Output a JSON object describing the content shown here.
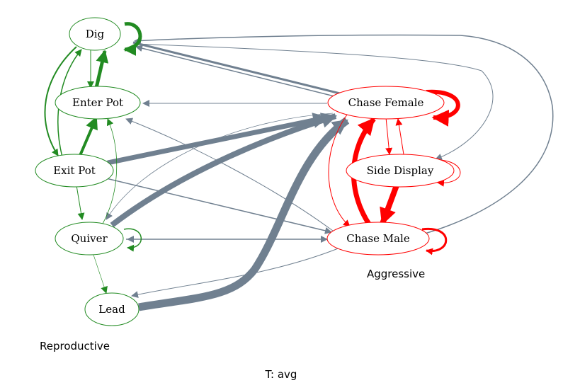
{
  "footer": "T: avg",
  "colors": {
    "reproductive": "#228b22",
    "aggressive": "#ff0000",
    "cross": "#708090"
  },
  "groups": [
    {
      "id": "reproductive",
      "label": "Reproductive"
    },
    {
      "id": "aggressive",
      "label": "Aggressive"
    }
  ],
  "nodes": [
    {
      "id": "dig",
      "label": "Dig",
      "group": "reproductive"
    },
    {
      "id": "enter_pot",
      "label": "Enter Pot",
      "group": "reproductive"
    },
    {
      "id": "exit_pot",
      "label": "Exit Pot",
      "group": "reproductive"
    },
    {
      "id": "quiver",
      "label": "Quiver",
      "group": "reproductive"
    },
    {
      "id": "lead",
      "label": "Lead",
      "group": "reproductive"
    },
    {
      "id": "chase_female",
      "label": "Chase Female",
      "group": "aggressive"
    },
    {
      "id": "side_display",
      "label": "Side Display",
      "group": "aggressive"
    },
    {
      "id": "chase_male",
      "label": "Chase Male",
      "group": "aggressive"
    }
  ],
  "edges": [
    {
      "from": "dig",
      "to": "dig",
      "weight": 5
    },
    {
      "from": "dig",
      "to": "enter_pot",
      "weight": 1
    },
    {
      "from": "dig",
      "to": "exit_pot",
      "weight": 2
    },
    {
      "from": "dig",
      "to": "chase_female",
      "weight": 3
    },
    {
      "from": "dig",
      "to": "side_display",
      "weight": 1
    },
    {
      "from": "enter_pot",
      "to": "dig",
      "weight": 5
    },
    {
      "from": "exit_pot",
      "to": "dig",
      "weight": 1.5
    },
    {
      "from": "exit_pot",
      "to": "enter_pot",
      "weight": 4
    },
    {
      "from": "exit_pot",
      "to": "quiver",
      "weight": 1
    },
    {
      "from": "exit_pot",
      "to": "chase_female",
      "weight": 7
    },
    {
      "from": "exit_pot",
      "to": "chase_male",
      "weight": 1.5
    },
    {
      "from": "quiver",
      "to": "enter_pot",
      "weight": 1
    },
    {
      "from": "quiver",
      "to": "quiver",
      "weight": 1.5
    },
    {
      "from": "quiver",
      "to": "lead",
      "weight": 1
    },
    {
      "from": "quiver",
      "to": "chase_female",
      "weight": 8
    },
    {
      "from": "quiver",
      "to": "chase_male",
      "weight": 1.5
    },
    {
      "from": "lead",
      "to": "chase_female",
      "weight": 10
    },
    {
      "from": "chase_female",
      "to": "enter_pot",
      "weight": 1
    },
    {
      "from": "chase_female",
      "to": "chase_female",
      "weight": 6
    },
    {
      "from": "chase_female",
      "to": "side_display",
      "weight": 1
    },
    {
      "from": "chase_female",
      "to": "chase_male",
      "weight": 1
    },
    {
      "from": "chase_female",
      "to": "quiver",
      "weight": 1
    },
    {
      "from": "side_display",
      "to": "chase_female",
      "weight": 1
    },
    {
      "from": "side_display",
      "to": "side_display",
      "weight": 1
    },
    {
      "from": "side_display",
      "to": "chase_male",
      "weight": 8
    },
    {
      "from": "chase_male",
      "to": "dig",
      "weight": 1.5
    },
    {
      "from": "chase_male",
      "to": "enter_pot",
      "weight": 1
    },
    {
      "from": "chase_male",
      "to": "quiver",
      "weight": 1.5
    },
    {
      "from": "chase_male",
      "to": "lead",
      "weight": 1
    },
    {
      "from": "chase_male",
      "to": "chase_female",
      "weight": 7
    },
    {
      "from": "chase_male",
      "to": "chase_male",
      "weight": 3
    }
  ]
}
